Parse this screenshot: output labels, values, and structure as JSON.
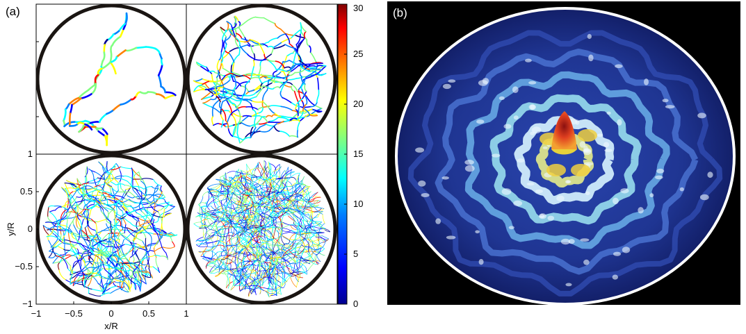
{
  "figure": {
    "panel_a_label": "(a)",
    "panel_b_label": "(b)"
  },
  "panel_a": {
    "xlabel": "x/R",
    "ylabel": "y/R",
    "x_ticks": [
      "−1",
      "−0.5",
      "0",
      "0.5",
      "1"
    ],
    "y_ticks": [
      "1",
      "0.5",
      "0",
      "−0.5",
      "−1"
    ],
    "xlim": [
      -1,
      1
    ],
    "ylim": [
      -1,
      1
    ],
    "boundary_radius": 1,
    "trajectory_subplots": [
      {
        "position": "top-left",
        "trajectory_density": "short"
      },
      {
        "position": "top-right",
        "trajectory_density": "medium"
      },
      {
        "position": "bottom-left",
        "trajectory_density": "long"
      },
      {
        "position": "bottom-right",
        "trajectory_density": "very long"
      }
    ]
  },
  "colorbar": {
    "ticks": [
      "30",
      "25",
      "20",
      "15",
      "10",
      "5",
      "0"
    ],
    "range": [
      0,
      30
    ],
    "colormap": [
      "#00008f",
      "#0000ff",
      "#0080ff",
      "#00ffff",
      "#80ff80",
      "#ffff00",
      "#ff8000",
      "#ff0000",
      "#800000"
    ]
  },
  "panel_b": {
    "description_visible": false,
    "background": "#000000",
    "boundary_color": "#ffffff",
    "surface_colors": [
      "#1a2a7a",
      "#2a46b0",
      "#3f7fd6",
      "#5fd0e8",
      "#e8f7ff",
      "#f3e24a",
      "#e04020",
      "#8a1010"
    ]
  },
  "chart_data": {
    "type": "heatmap",
    "colorbar_range": [
      0,
      30
    ],
    "colorbar_ticks": [
      0,
      5,
      10,
      15,
      20,
      25,
      30
    ],
    "xlabel": "x/R",
    "ylabel": "y/R",
    "xlim": [
      -1,
      1
    ],
    "ylim": [
      -1,
      1
    ]
  }
}
